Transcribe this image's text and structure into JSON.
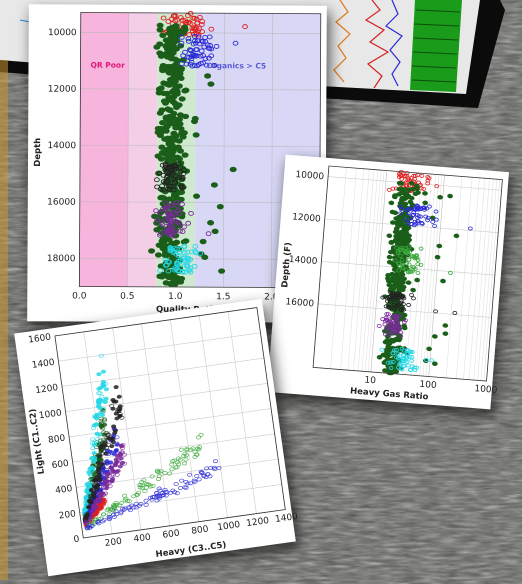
{
  "background": {
    "description_colors": {
      "rock": "#5e5e5a",
      "tablet": "#0b0b0b",
      "accent": "#c8962a"
    }
  },
  "chart_data": [
    {
      "type": "scatter",
      "title": "",
      "xlabel": "Quality Ratio",
      "ylabel": "Depth",
      "xlim": [
        0,
        2.5
      ],
      "ylim": [
        19000,
        9300
      ],
      "x_ticks": [
        "0.0",
        "0.5",
        "1.0",
        "1.5",
        "2.0"
      ],
      "y_ticks": [
        "10000",
        "12000",
        "14000",
        "16000",
        "18000"
      ],
      "regions": [
        {
          "label": "QR Poor",
          "x": [
            0,
            0.5
          ],
          "color": "#f7b4dc",
          "label_color": "#e0177a"
        },
        {
          "label": "",
          "x": [
            0.5,
            0.8
          ],
          "color": "#f4cde6",
          "label_color": ""
        },
        {
          "label": "",
          "x": [
            0.8,
            1.2
          ],
          "color": "#cfe9cf",
          "label_color": ""
        },
        {
          "label": "Organics > C5",
          "x": [
            1.2,
            2.5
          ],
          "color": "#d8d8f6",
          "label_color": "#5a5ad6"
        }
      ],
      "grid": true,
      "series": [
        {
          "color": "#e02020",
          "depth_range": [
            9300,
            10100
          ],
          "x_center": 1.1,
          "spread": 0.35
        },
        {
          "color": "#1a5e1a",
          "depth_range": [
            9700,
            19000
          ],
          "x_center": 0.95,
          "spread": 0.18
        },
        {
          "color": "#2a2ad6",
          "depth_range": [
            10100,
            11200
          ],
          "x_center": 1.2,
          "spread": 0.3
        },
        {
          "color": "#7a2a9a",
          "depth_range": [
            16000,
            17200
          ],
          "x_center": 0.95,
          "spread": 0.2
        },
        {
          "color": "#222222",
          "depth_range": [
            14600,
            15600
          ],
          "x_center": 0.95,
          "spread": 0.2
        },
        {
          "color": "#22d8e8",
          "depth_range": [
            17500,
            18500
          ],
          "x_center": 1.05,
          "spread": 0.25
        }
      ]
    },
    {
      "type": "scatter",
      "title": "",
      "xlabel": "Heavy Gas Ratio",
      "ylabel": "Depth (F)",
      "xscale": "log",
      "xlim": [
        1,
        1000
      ],
      "ylim": [
        19000,
        9500
      ],
      "x_ticks": [
        "10",
        "100",
        "1000"
      ],
      "y_ticks": [
        "10000",
        "12000",
        "14000",
        "16000"
      ],
      "grid": true,
      "series": [
        {
          "color": "#e02020",
          "depth_range": [
            9500,
            10400
          ],
          "x_center": 30,
          "spread_log": 0.5
        },
        {
          "color": "#1a5e1a",
          "depth_range": [
            10000,
            19000
          ],
          "x_center": 22,
          "spread_log": 0.25
        },
        {
          "color": "#2a2ad6",
          "depth_range": [
            11000,
            12000
          ],
          "x_center": 40,
          "spread_log": 0.4
        },
        {
          "color": "#3aa83a",
          "depth_range": [
            13000,
            14200
          ],
          "x_center": 30,
          "spread_log": 0.35
        },
        {
          "color": "#7a2a9a",
          "depth_range": [
            16200,
            17200
          ],
          "x_center": 22,
          "spread_log": 0.3
        },
        {
          "color": "#222222",
          "depth_range": [
            15200,
            16000
          ],
          "x_center": 22,
          "spread_log": 0.3
        },
        {
          "color": "#22d8e8",
          "depth_range": [
            17800,
            18800
          ],
          "x_center": 35,
          "spread_log": 0.45
        }
      ]
    },
    {
      "type": "scatter",
      "title": "",
      "xlabel": "Heavy (C3..C5)",
      "ylabel": "Light (C1..C2)",
      "xlim": [
        0,
        1400
      ],
      "ylim": [
        0,
        1600
      ],
      "x_ticks": [
        "200",
        "400",
        "600",
        "800",
        "1000",
        "1200",
        "1400"
      ],
      "y_ticks": [
        "0",
        "200",
        "400",
        "600",
        "800",
        "1000",
        "1200",
        "1400",
        "1600"
      ],
      "grid": true,
      "series": [
        {
          "color": "#e02020",
          "slope": 1.2,
          "xmax": 180
        },
        {
          "color": "#1a5e1a",
          "slope": 3.2,
          "xmax": 260
        },
        {
          "color": "#2a2ad6",
          "slope": 2.1,
          "xmax": 330
        },
        {
          "color": "#7a2a9a",
          "slope": 1.6,
          "xmax": 360
        },
        {
          "color": "#22d8e8",
          "slope": 4.0,
          "xmax": 300
        },
        {
          "color": "#222222",
          "slope": 2.6,
          "xmax": 380
        },
        {
          "color": "#3aa83a",
          "slope": 0.6,
          "xmax": 900
        },
        {
          "color": "#2a2ad6",
          "slope": 0.35,
          "xmax": 1000
        }
      ]
    }
  ]
}
